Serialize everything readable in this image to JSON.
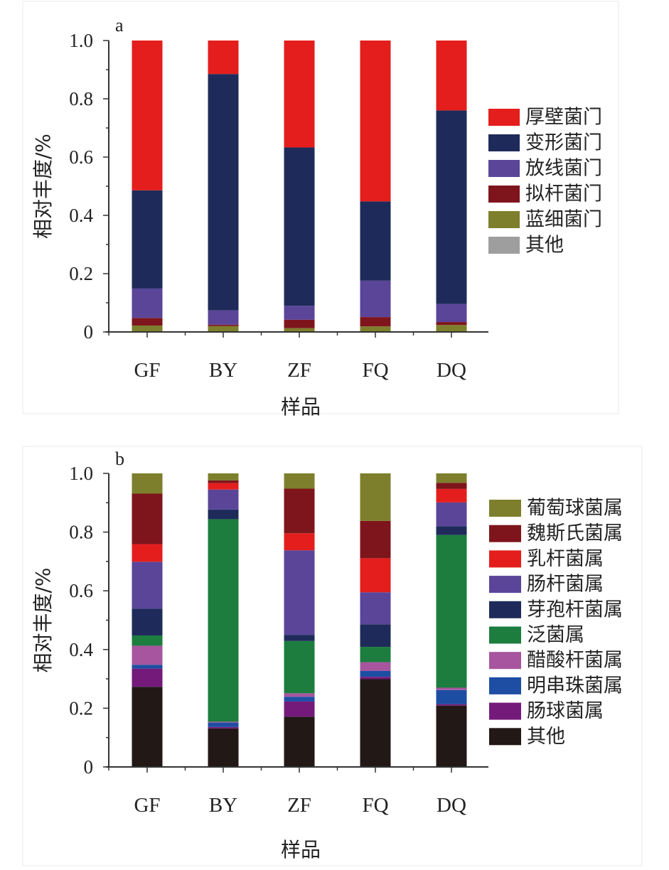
{
  "chart_data": [
    {
      "panel_label": "a",
      "type": "bar",
      "stacked": true,
      "categories": [
        "GF",
        "BY",
        "ZF",
        "FQ",
        "DQ"
      ],
      "xlabel": "样品",
      "ylabel": "相对丰度/%",
      "ylim": [
        0,
        1.0
      ],
      "yticks": [
        0,
        0.2,
        0.4,
        0.6,
        0.8,
        1.0
      ],
      "ytick_labels": [
        "0",
        "0.2",
        "0.4",
        "0.6",
        "0.8",
        "1.0"
      ],
      "legend_position": "right",
      "series": [
        {
          "name": "其他",
          "color": "#9e9e9e",
          "values": [
            0.002,
            0.002,
            0.002,
            0.002,
            0.002
          ]
        },
        {
          "name": "蓝细菌门",
          "color": "#7d7f2c",
          "values": [
            0.02,
            0.018,
            0.011,
            0.017,
            0.022
          ]
        },
        {
          "name": "拟杆菌门",
          "color": "#7e151c",
          "values": [
            0.026,
            0.005,
            0.029,
            0.032,
            0.01
          ]
        },
        {
          "name": "放线菌门",
          "color": "#5a4599",
          "values": [
            0.101,
            0.049,
            0.048,
            0.125,
            0.062
          ]
        },
        {
          "name": "变形菌门",
          "color": "#1e2b5a",
          "values": [
            0.337,
            0.811,
            0.543,
            0.272,
            0.664
          ]
        },
        {
          "name": "厚壁菌门",
          "color": "#e41e1c",
          "values": [
            0.514,
            0.115,
            0.367,
            0.552,
            0.24
          ]
        }
      ],
      "legend_order": [
        "厚壁菌门",
        "变形菌门",
        "放线菌门",
        "拟杆菌门",
        "蓝细菌门",
        "其他"
      ]
    },
    {
      "panel_label": "b",
      "type": "bar",
      "stacked": true,
      "categories": [
        "GF",
        "BY",
        "ZF",
        "FQ",
        "DQ"
      ],
      "xlabel": "样品",
      "ylabel": "相对丰度/%",
      "ylim": [
        0,
        1.0
      ],
      "yticks": [
        0,
        0.2,
        0.4,
        0.6,
        0.8,
        1.0
      ],
      "ytick_labels": [
        "0",
        "0.2",
        "0.4",
        "0.6",
        "0.8",
        "1.0"
      ],
      "legend_position": "right",
      "series": [
        {
          "name": "其他",
          "color": "#221816",
          "values": [
            0.273,
            0.131,
            0.171,
            0.299,
            0.209
          ]
        },
        {
          "name": "肠球菌属",
          "color": "#741a7a",
          "values": [
            0.062,
            0.005,
            0.052,
            0.008,
            0.005
          ]
        },
        {
          "name": "明串珠菌属",
          "color": "#1d4ea3",
          "values": [
            0.013,
            0.015,
            0.016,
            0.02,
            0.048
          ]
        },
        {
          "name": "醋酸杆菌属",
          "color": "#a6559e",
          "values": [
            0.065,
            0.003,
            0.012,
            0.03,
            0.008
          ]
        },
        {
          "name": "泛菌属",
          "color": "#1c7d3e",
          "values": [
            0.035,
            0.69,
            0.178,
            0.052,
            0.52
          ]
        },
        {
          "name": "芽孢杆菌属",
          "color": "#1e2b5a",
          "values": [
            0.091,
            0.033,
            0.021,
            0.077,
            0.03
          ]
        },
        {
          "name": "肠杆菌属",
          "color": "#5a4599",
          "values": [
            0.16,
            0.068,
            0.288,
            0.109,
            0.081
          ]
        },
        {
          "name": "乳杆菌属",
          "color": "#e41e1c",
          "values": [
            0.06,
            0.022,
            0.058,
            0.116,
            0.046
          ]
        },
        {
          "name": "魏斯氏菌属",
          "color": "#7e151c",
          "values": [
            0.172,
            0.009,
            0.152,
            0.127,
            0.021
          ]
        },
        {
          "name": "葡萄球菌属",
          "color": "#7d7f2c",
          "values": [
            0.069,
            0.024,
            0.052,
            0.162,
            0.032
          ]
        }
      ],
      "legend_order": [
        "葡萄球菌属",
        "魏斯氏菌属",
        "乳杆菌属",
        "肠杆菌属",
        "芽孢杆菌属",
        "泛菌属",
        "醋酸杆菌属",
        "明串珠菌属",
        "肠球菌属",
        "其他"
      ]
    }
  ]
}
